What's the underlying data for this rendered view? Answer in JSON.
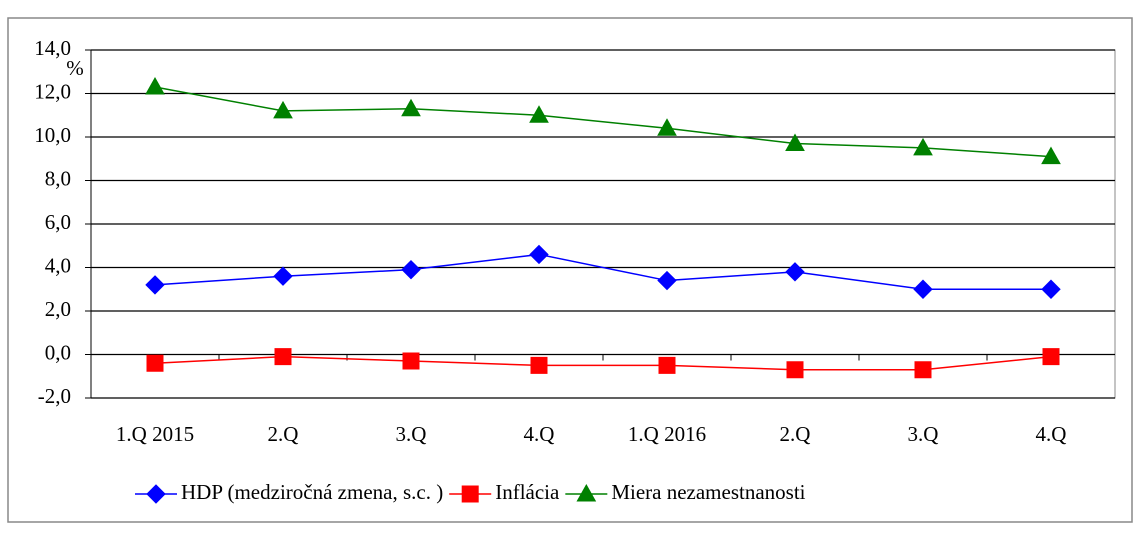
{
  "chart_data": {
    "type": "line",
    "y_label": "%",
    "categories": [
      "1.Q 2015",
      "2.Q",
      "3.Q",
      "4.Q",
      "1.Q 2016",
      "2.Q",
      "3.Q",
      "4.Q"
    ],
    "series": [
      {
        "name": "HDP (medziročná zmena, s.c. )",
        "color": "#0000ff",
        "marker": "diamond",
        "values": [
          3.2,
          3.6,
          3.9,
          4.6,
          3.4,
          3.8,
          3.0,
          3.0
        ]
      },
      {
        "name": "Inflácia",
        "color": "#ff0000",
        "marker": "square",
        "values": [
          -0.4,
          -0.1,
          -0.3,
          -0.5,
          -0.5,
          -0.7,
          -0.7,
          -0.1
        ]
      },
      {
        "name": "Miera nezamestnanosti",
        "color": "#008000",
        "marker": "triangle",
        "values": [
          12.3,
          11.2,
          11.3,
          11.0,
          10.4,
          9.7,
          9.5,
          9.1
        ]
      }
    ],
    "ylim": [
      -2,
      14
    ],
    "yticks": [
      {
        "value": -2,
        "label": "-2,0"
      },
      {
        "value": 0,
        "label": "0,0"
      },
      {
        "value": 2,
        "label": "2,0"
      },
      {
        "value": 4,
        "label": "4,0"
      },
      {
        "value": 6,
        "label": "6,0"
      },
      {
        "value": 8,
        "label": "8,0"
      },
      {
        "value": 10,
        "label": "10,0"
      },
      {
        "value": 12,
        "label": "12,0"
      },
      {
        "value": 14,
        "label": "14,0"
      }
    ],
    "grid": true,
    "legend": "bottom"
  }
}
